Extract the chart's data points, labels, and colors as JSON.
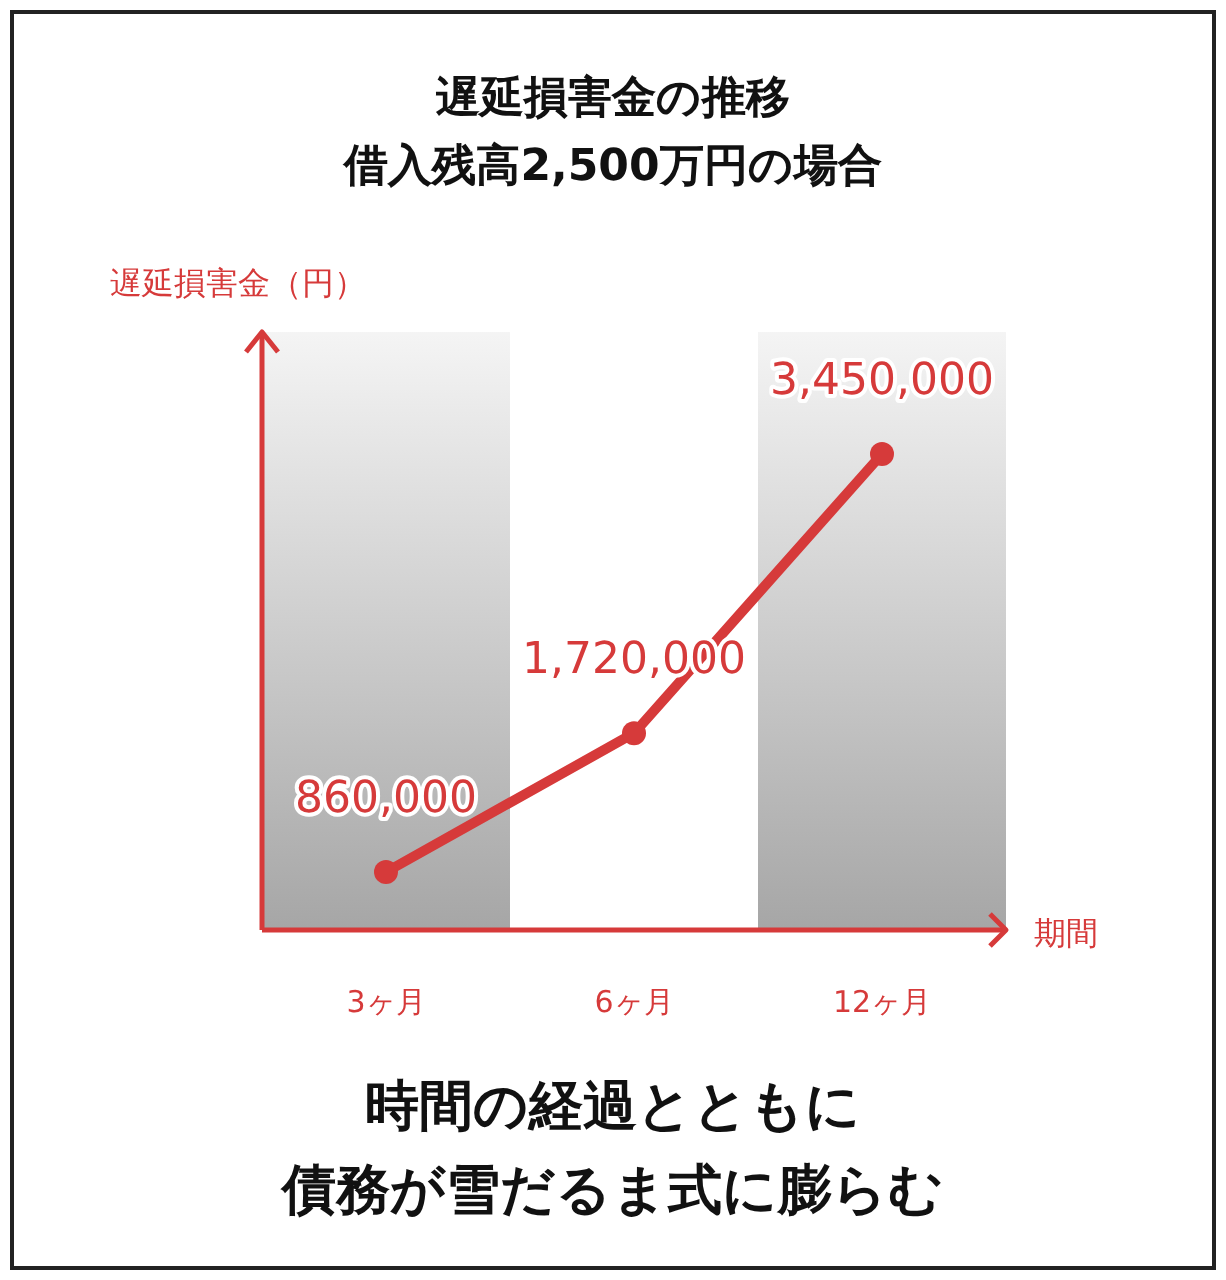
{
  "chart_data": {
    "type": "line",
    "title": "遅延損害金の推移",
    "subtitle": "借入残高2,500万円の場合",
    "ylabel": "遅延損害金（円）",
    "xlabel": "期間",
    "categories": [
      "3ヶ月",
      "6ヶ月",
      "12ヶ月"
    ],
    "series": [
      {
        "color": "#d63a3a",
        "values": [
          860000,
          1720000,
          3450000
        ],
        "value_labels": [
          "860,000",
          "1,720,000",
          "3,450,000"
        ]
      }
    ],
    "marker": "circle",
    "bands": [
      {
        "axis": "x",
        "from": "3ヶ月",
        "to": "3ヶ月",
        "color": "#a6a6a6"
      },
      {
        "axis": "x",
        "from": "12ヶ月",
        "to": "12ヶ月",
        "color": "#a6a6a6"
      }
    ],
    "annotations": [
      "時間の経過とともに",
      "債務が雪だるま式に膨らむ"
    ]
  }
}
